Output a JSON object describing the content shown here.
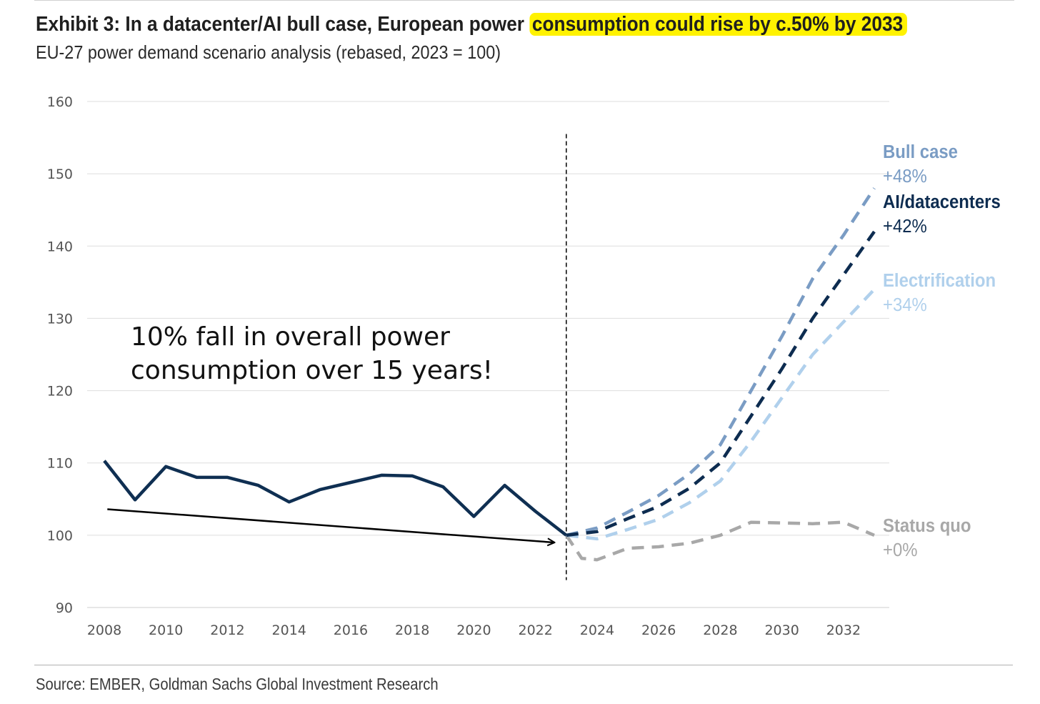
{
  "header": {
    "title_plain": "Exhibit 3: In a datacenter/AI bull case, European power ",
    "title_highlight": "consumption could rise by c.50% by 2033",
    "subtitle": "EU-27 power demand scenario analysis (rebased, 2023 = 100)"
  },
  "footer": {
    "source": "Source: EMBER, Goldman Sachs Global Investment Research"
  },
  "chart_data": {
    "type": "line",
    "title": "",
    "xlabel": "",
    "ylabel": "",
    "xlim": [
      2008,
      2033
    ],
    "ylim": [
      90,
      160
    ],
    "yticks": [
      90,
      100,
      110,
      120,
      130,
      140,
      150,
      160
    ],
    "xticks": [
      2008,
      2010,
      2012,
      2014,
      2016,
      2018,
      2020,
      2022,
      2024,
      2026,
      2028,
      2030,
      2032
    ],
    "grid": "horizontal",
    "divider_year": 2023,
    "historical": {
      "color": "#0f2f52",
      "x": [
        2008,
        2009,
        2010,
        2011,
        2012,
        2013,
        2014,
        2015,
        2016,
        2017,
        2018,
        2019,
        2020,
        2021,
        2022,
        2023
      ],
      "values": [
        110.3,
        104.9,
        109.5,
        108.0,
        108.0,
        106.9,
        104.6,
        106.3,
        107.3,
        108.3,
        108.2,
        106.7,
        102.6,
        106.9,
        103.3,
        100.0
      ]
    },
    "series": [
      {
        "name": "Bull case",
        "change": "+48%",
        "color": "#7a9cc4",
        "x": [
          2023,
          2024,
          2025,
          2026,
          2027,
          2028,
          2029,
          2030,
          2031,
          2032,
          2033
        ],
        "values": [
          100,
          101,
          103.2,
          105.5,
          108.5,
          112.5,
          120,
          127.5,
          135.5,
          141.5,
          148
        ]
      },
      {
        "name": "AI/datacenters",
        "change": "+42%",
        "color": "#0d2c50",
        "x": [
          2023,
          2024,
          2025,
          2026,
          2027,
          2028,
          2029,
          2030,
          2031,
          2032,
          2033
        ],
        "values": [
          100,
          100.5,
          102.3,
          104,
          106.5,
          110,
          116.5,
          123,
          130,
          136,
          142
        ]
      },
      {
        "name": "Electrification",
        "change": "+34%",
        "color": "#b0d0ec",
        "x": [
          2023,
          2024,
          2025,
          2026,
          2027,
          2028,
          2029,
          2030,
          2031,
          2032,
          2033
        ],
        "values": [
          100,
          99.5,
          100.8,
          102.2,
          104.5,
          107.5,
          113,
          119,
          125,
          129.5,
          134
        ]
      },
      {
        "name": "Status quo",
        "change": "+0%",
        "color": "#a8a8a8",
        "x": [
          2023,
          2023.5,
          2024,
          2025,
          2026,
          2027,
          2028,
          2029,
          2030,
          2031,
          2032,
          2033
        ],
        "values": [
          100,
          96.8,
          96.6,
          98.2,
          98.4,
          98.9,
          100.0,
          101.8,
          101.7,
          101.6,
          101.8,
          100
        ]
      }
    ],
    "annotation": {
      "line1": "10% fall in overall power",
      "line2": "consumption over 15 years!",
      "arrow_from": [
        2008.1,
        103.6
      ],
      "arrow_to": [
        2022.6,
        99.0
      ]
    }
  }
}
